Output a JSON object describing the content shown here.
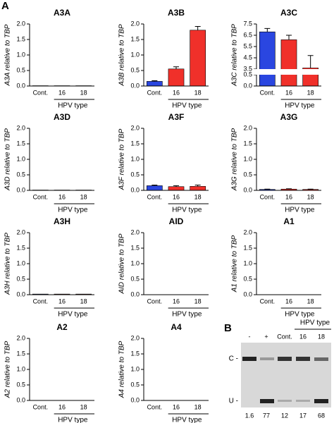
{
  "panel_label": "A",
  "chart_data": [
    {
      "type": "bar",
      "title": "A3A",
      "ylabel": "A3A relative to TBP",
      "categories": [
        "Cont.",
        "16",
        "18"
      ],
      "group_label": "HPV type",
      "values": [
        0.01,
        0.01,
        0.01
      ],
      "colors": [
        "#2a46e0",
        "#f0302a",
        "#f0302a"
      ],
      "ylim": [
        0,
        2
      ],
      "yticks": [
        {
          "value": 0,
          "label": "0.0"
        },
        0.5,
        {
          "value": 1,
          "label": "1.0"
        },
        1.5,
        {
          "value": 2,
          "label": "2.0"
        }
      ]
    },
    {
      "type": "bar",
      "title": "A3B",
      "ylabel": "A3B relative to TBP",
      "categories": [
        "Cont.",
        "16",
        "18"
      ],
      "group_label": "HPV type",
      "values": [
        0.15,
        0.55,
        1.8
      ],
      "errors": [
        0.02,
        0.07,
        0.12
      ],
      "colors": [
        "#2a46e0",
        "#f0302a",
        "#f0302a"
      ],
      "ylim": [
        0,
        2
      ],
      "yticks": [
        {
          "value": 0,
          "label": "0.0"
        },
        0.5,
        {
          "value": 1,
          "label": "1.0"
        },
        1.5,
        {
          "value": 2,
          "label": "2.0"
        }
      ]
    },
    {
      "type": "bar",
      "title": "A3C",
      "ylabel": "A3C relative to TBP",
      "categories": [
        "Cont.",
        "16",
        "18"
      ],
      "group_label": "HPV type",
      "values": [
        6.8,
        6.1,
        3.6
      ],
      "errors": [
        0.3,
        0.4,
        1.1
      ],
      "colors": [
        "#2a46e0",
        "#f0302a",
        "#f0302a"
      ],
      "ylim": [
        0,
        7.5
      ],
      "ybreak": [
        0.5,
        3.5
      ],
      "yticks": [
        {
          "value": 0,
          "label": "0.0"
        },
        0.5,
        3.5,
        4.5,
        5.5,
        6.5,
        7.5
      ]
    },
    {
      "type": "bar",
      "title": "A3D",
      "ylabel": "A3D relative to TBP",
      "categories": [
        "Cont.",
        "16",
        "18"
      ],
      "group_label": "HPV type",
      "values": [
        0.01,
        0.01,
        0.01
      ],
      "colors": [
        "#2a46e0",
        "#f0302a",
        "#f0302a"
      ],
      "ylim": [
        0,
        2
      ],
      "yticks": [
        {
          "value": 0,
          "label": "0.0"
        },
        0.5,
        {
          "value": 1,
          "label": "1.0"
        },
        1.5,
        {
          "value": 2,
          "label": "2.0"
        }
      ]
    },
    {
      "type": "bar",
      "title": "A3F",
      "ylabel": "A3F relative to TBP",
      "categories": [
        "Cont.",
        "16",
        "18"
      ],
      "group_label": "HPV type",
      "values": [
        0.15,
        0.12,
        0.13
      ],
      "errors": [
        0.02,
        0.03,
        0.04
      ],
      "colors": [
        "#2a46e0",
        "#f0302a",
        "#f0302a"
      ],
      "ylim": [
        0,
        2
      ],
      "yticks": [
        {
          "value": 0,
          "label": "0.0"
        },
        0.5,
        {
          "value": 1,
          "label": "1.0"
        },
        1.5,
        {
          "value": 2,
          "label": "2.0"
        }
      ]
    },
    {
      "type": "bar",
      "title": "A3G",
      "ylabel": "A3G relative to TBP",
      "categories": [
        "Cont.",
        "16",
        "18"
      ],
      "group_label": "HPV type",
      "values": [
        0.03,
        0.04,
        0.03
      ],
      "errors": [
        0.01,
        0.01,
        0.01
      ],
      "colors": [
        "#2a46e0",
        "#f0302a",
        "#f0302a"
      ],
      "ylim": [
        0,
        2
      ],
      "yticks": [
        {
          "value": 0,
          "label": "0.0"
        },
        0.5,
        {
          "value": 1,
          "label": "1.0"
        },
        1.5,
        {
          "value": 2,
          "label": "2.0"
        }
      ]
    },
    {
      "type": "bar",
      "title": "A3H",
      "ylabel": "A3H relative to TBP",
      "categories": [
        "Cont.",
        "16",
        "18"
      ],
      "group_label": "HPV type",
      "values": [
        0.02,
        0.02,
        0.02
      ],
      "colors": [
        "#2a46e0",
        "#f0302a",
        "#f0302a"
      ],
      "ylim": [
        0,
        2
      ],
      "yticks": [
        {
          "value": 0,
          "label": "0.0"
        },
        0.5,
        {
          "value": 1,
          "label": "1.0"
        },
        1.5,
        {
          "value": 2,
          "label": "2.0"
        }
      ]
    },
    {
      "type": "bar",
      "title": "AID",
      "ylabel": "AID relative to TBP",
      "categories": [
        "Cont.",
        "16",
        "18"
      ],
      "group_label": "HPV type",
      "values": [
        0,
        0,
        0
      ],
      "colors": [
        "#2a46e0",
        "#f0302a",
        "#f0302a"
      ],
      "ylim": [
        0,
        2
      ],
      "yticks": [
        {
          "value": 0,
          "label": "0.0"
        },
        0.5,
        {
          "value": 1,
          "label": "1.0"
        },
        1.5,
        {
          "value": 2,
          "label": "2.0"
        }
      ]
    },
    {
      "type": "bar",
      "title": "A1",
      "ylabel": "A1 relative to TBP",
      "categories": [
        "Cont.",
        "16",
        "18"
      ],
      "group_label": "HPV type",
      "values": [
        0,
        0,
        0
      ],
      "colors": [
        "#2a46e0",
        "#f0302a",
        "#f0302a"
      ],
      "ylim": [
        0,
        2
      ],
      "yticks": [
        {
          "value": 0,
          "label": "0.0"
        },
        0.5,
        {
          "value": 1,
          "label": "1.0"
        },
        1.5,
        {
          "value": 2,
          "label": "2.0"
        }
      ]
    },
    {
      "type": "bar",
      "title": "A2",
      "ylabel": "A2 relative to TBP",
      "categories": [
        "Cont.",
        "16",
        "18"
      ],
      "group_label": "HPV type",
      "values": [
        0,
        0,
        0
      ],
      "colors": [
        "#2a46e0",
        "#f0302a",
        "#f0302a"
      ],
      "ylim": [
        0,
        2
      ],
      "yticks": [
        {
          "value": 0,
          "label": "0.0"
        },
        0.5,
        {
          "value": 1,
          "label": "1.0"
        },
        1.5,
        {
          "value": 2,
          "label": "2.0"
        }
      ]
    },
    {
      "type": "bar",
      "title": "A4",
      "ylabel": "A4 relative to TBP",
      "categories": [
        "Cont.",
        "16",
        "18"
      ],
      "group_label": "HPV type",
      "values": [
        0,
        0,
        0
      ],
      "colors": [
        "#2a46e0",
        "#f0302a",
        "#f0302a"
      ],
      "ylim": [
        0,
        2
      ],
      "yticks": [
        {
          "value": 0,
          "label": "0.0"
        },
        0.5,
        {
          "value": 1,
          "label": "1.0"
        },
        1.5,
        {
          "value": 2,
          "label": "2.0"
        }
      ]
    }
  ],
  "gel": {
    "label": "B",
    "header": "HPV type",
    "lanes": [
      "-",
      "+",
      "Cont.",
      "16",
      "18"
    ],
    "bands": [
      "C -",
      "U -"
    ],
    "quantities": [
      1.6,
      77,
      12,
      17,
      68
    ]
  }
}
